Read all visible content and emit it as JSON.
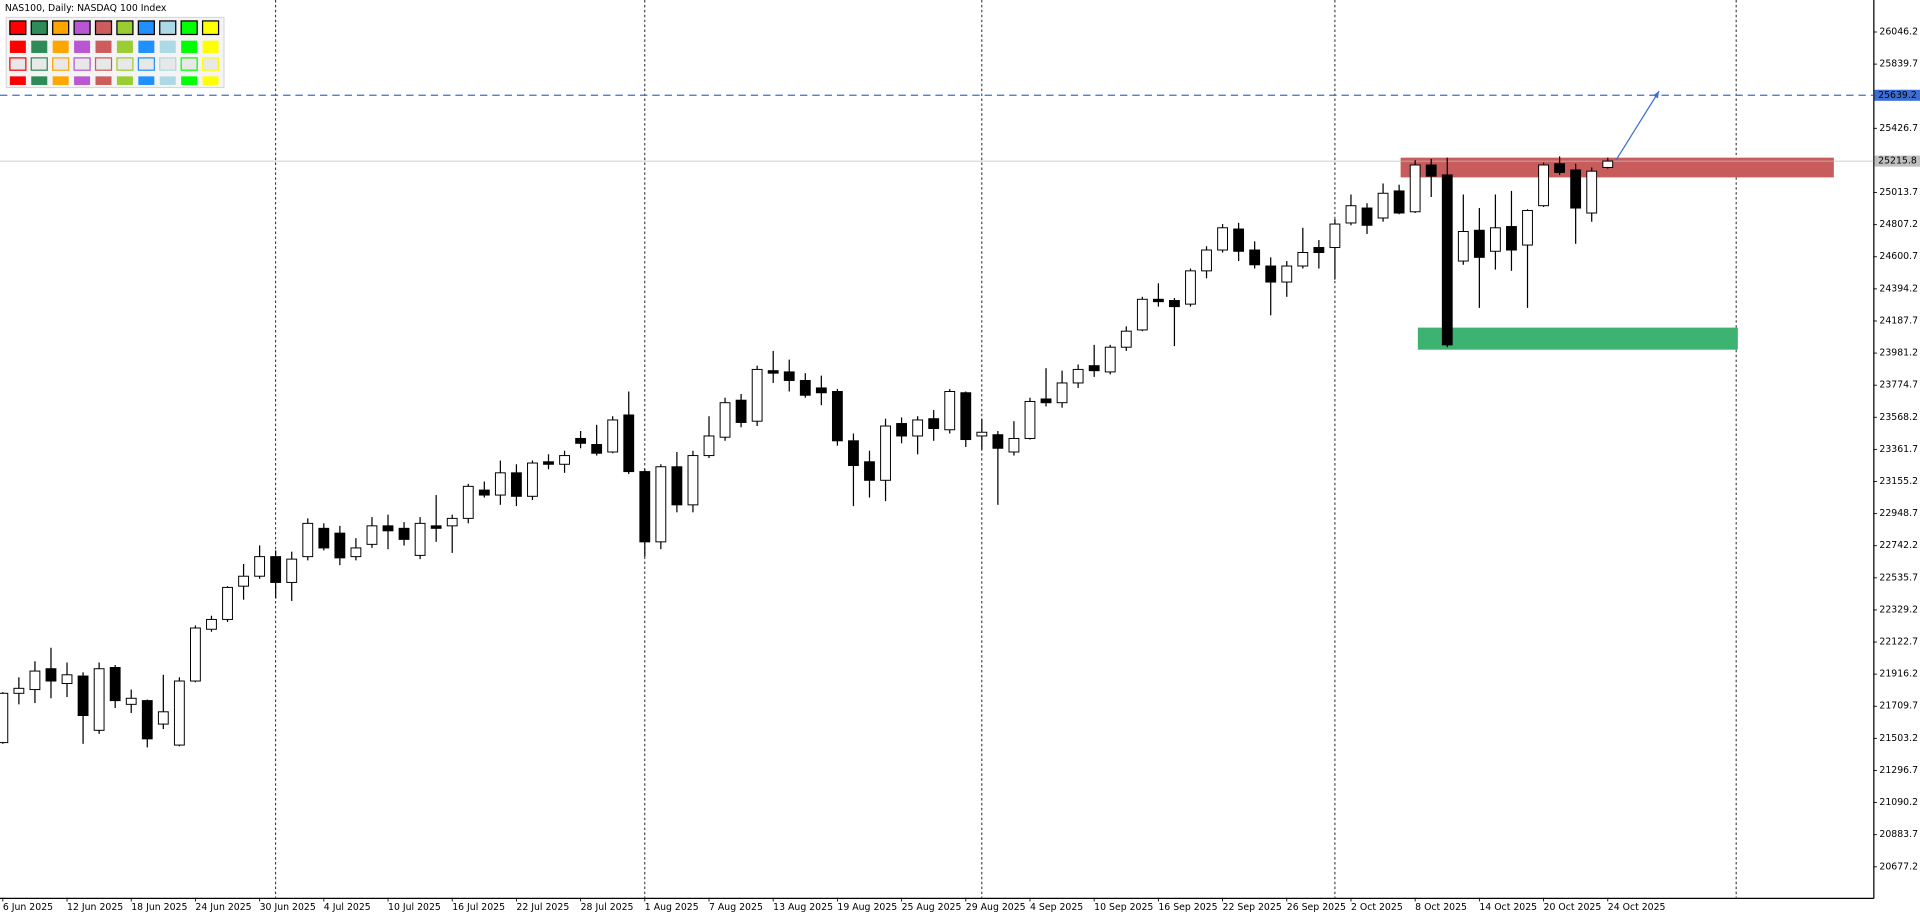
{
  "chart_data": {
    "type": "candlestick",
    "title": "NAS100, Daily:  NASDAQ 100 Index",
    "x": [
      "6 Jun 2025",
      null,
      null,
      null,
      "12 Jun 2025",
      null,
      null,
      null,
      "18 Jun 2025",
      null,
      null,
      null,
      "24 Jun 2025",
      null,
      null,
      null,
      "30 Jun 2025",
      null,
      null,
      null,
      "4 Jul 2025",
      null,
      null,
      null,
      "10 Jul 2025",
      null,
      null,
      null,
      "16 Jul 2025",
      null,
      null,
      null,
      "22 Jul 2025",
      null,
      null,
      null,
      "28 Jul 2025",
      null,
      null,
      null,
      "1 Aug 2025",
      null,
      null,
      null,
      "7 Aug 2025",
      null,
      null,
      null,
      "13 Aug 2025",
      null,
      null,
      null,
      "19 Aug 2025",
      null,
      null,
      null,
      "25 Aug 2025",
      null,
      null,
      null,
      "29 Aug 2025",
      null,
      null,
      null,
      "4 Sep 2025",
      null,
      null,
      null,
      "10 Sep 2025",
      null,
      null,
      null,
      "16 Sep 2025",
      null,
      null,
      null,
      "22 Sep 2025",
      null,
      null,
      null,
      "26 Sep 2025",
      null,
      null,
      null,
      "2 Oct 2025",
      null,
      null,
      null,
      "8 Oct 2025",
      null,
      null,
      null,
      "14 Oct 2025",
      null,
      null,
      null,
      "20 Oct 2025",
      null,
      null,
      null,
      "24 Oct 2025"
    ],
    "open": [
      21476,
      21793,
      21817,
      21951,
      21856,
      21904,
      21555,
      21959,
      21722,
      21746,
      21595,
      21460,
      21872,
      22205,
      22268,
      22482,
      22546,
      22672,
      22506,
      22672,
      22854,
      22823,
      22672,
      22751,
      22870,
      22854,
      22680,
      22870,
      22870,
      22918,
      23100,
      23068,
      23211,
      23060,
      23282,
      23266,
      23432,
      23393,
      23345,
      23583,
      23219,
      22767,
      23250,
      23005,
      23322,
      23440,
      23678,
      23543,
      23868,
      23860,
      23805,
      23757,
      23734,
      23417,
      23282,
      23163,
      23528,
      23448,
      23559,
      23488,
      23726,
      23448,
      23456,
      23345,
      23432,
      23686,
      23662,
      23789,
      23900,
      23860,
      24019,
      24130,
      24327,
      24319,
      24296,
      24510,
      24644,
      24779,
      24644,
      24541,
      24438,
      24541,
      24660,
      24660,
      24818,
      24914,
      24850,
      25024,
      24890,
      25191,
      25127,
      24573,
      24771,
      24636,
      24795,
      24676,
      24929,
      25199,
      25159,
      24882,
      25175
    ],
    "high": [
      21801,
      21896,
      21999,
      22086,
      21991,
      21928,
      21991,
      21975,
      21817,
      21753,
      21912,
      21896,
      22229,
      22292,
      22482,
      22625,
      22744,
      22712,
      22704,
      22918,
      22886,
      22870,
      22791,
      22926,
      22942,
      22894,
      22926,
      23068,
      22942,
      23140,
      23155,
      23290,
      23266,
      23290,
      23330,
      23353,
      23480,
      23520,
      23575,
      23734,
      23234,
      23266,
      23345,
      23353,
      23575,
      23694,
      23718,
      23900,
      23995,
      23939,
      23852,
      23836,
      23750,
      23464,
      23353,
      23559,
      23567,
      23575,
      23615,
      23750,
      23734,
      23559,
      23480,
      23543,
      23694,
      23884,
      23868,
      23908,
      24034,
      24034,
      24153,
      24343,
      24430,
      24335,
      24525,
      24668,
      24811,
      24819,
      24700,
      24597,
      24573,
      24787,
      24708,
      24842,
      25001,
      24945,
      25072,
      25064,
      25222,
      25230,
      25238,
      25001,
      24914,
      25001,
      25024,
      24906,
      25207,
      25246,
      25199,
      25175,
      25238
    ],
    "low": [
      21468,
      21722,
      21730,
      21761,
      21769,
      21468,
      21532,
      21698,
      21666,
      21445,
      21563,
      21452,
      21864,
      22189,
      22252,
      22395,
      22530,
      22403,
      22387,
      22648,
      22712,
      22617,
      22648,
      22728,
      22720,
      22743,
      22656,
      22767,
      22696,
      22886,
      23052,
      23005,
      22997,
      23036,
      23234,
      23211,
      23369,
      23322,
      23337,
      23203,
      22672,
      22720,
      22957,
      22957,
      23306,
      23417,
      23504,
      23512,
      23789,
      23734,
      23694,
      23646,
      23385,
      22997,
      23052,
      23029,
      23401,
      23330,
      23417,
      23464,
      23377,
      23361,
      23005,
      23322,
      23425,
      23638,
      23630,
      23757,
      23828,
      23844,
      23995,
      24122,
      24280,
      24026,
      24280,
      24462,
      24628,
      24573,
      24525,
      24224,
      24343,
      24525,
      24525,
      24454,
      24803,
      24747,
      24826,
      24874,
      24882,
      24985,
      24019,
      24549,
      24272,
      24518,
      24510,
      24272,
      24921,
      25127,
      24684,
      24826,
      25167
    ],
    "close": [
      21793,
      21825,
      21936,
      21872,
      21912,
      21650,
      21951,
      21746,
      21761,
      21500,
      21674,
      21872,
      22213,
      22268,
      22474,
      22546,
      22672,
      22506,
      22656,
      22886,
      22728,
      22664,
      22728,
      22870,
      22838,
      22783,
      22886,
      22854,
      22918,
      23124,
      23068,
      23211,
      23060,
      23274,
      23266,
      23322,
      23401,
      23337,
      23551,
      23219,
      22767,
      23250,
      23005,
      23322,
      23448,
      23662,
      23535,
      23876,
      23852,
      23805,
      23710,
      23726,
      23417,
      23258,
      23163,
      23512,
      23448,
      23551,
      23496,
      23734,
      23425,
      23472,
      23369,
      23432,
      23670,
      23662,
      23789,
      23876,
      23868,
      24019,
      24122,
      24327,
      24312,
      24280,
      24510,
      24644,
      24787,
      24636,
      24549,
      24438,
      24541,
      24628,
      24628,
      24811,
      24929,
      24803,
      25009,
      24882,
      25191,
      25119,
      24034,
      24763,
      24597,
      24787,
      24644,
      24898,
      25191,
      25143,
      24914,
      25151,
      25216
    ],
    "up_color": "#ffffff",
    "down_color": "#000000",
    "ylim": [
      20478,
      26252
    ],
    "yticks": [
      26046.2,
      25839.7,
      25426.7,
      25013.7,
      24807.2,
      24600.7,
      24394.2,
      24187.7,
      23981.2,
      23774.7,
      23568.2,
      23361.7,
      23155.2,
      22948.7,
      22742.2,
      22535.7,
      22329.2,
      22122.7,
      21916.2,
      21709.7,
      21503.2,
      21296.7,
      21090.2,
      20883.7,
      20677.2
    ],
    "price_lines": [
      {
        "value": 25639.2,
        "color": "#3b6fd4",
        "style": "dashed"
      },
      {
        "value": 25215.8,
        "color": "#c0c0c0",
        "style": "solid"
      }
    ],
    "zones": [
      {
        "top": 25238,
        "bottom": 25111,
        "color": "#c85c5c"
      },
      {
        "top": 24145,
        "bottom": 24003,
        "color": "#3cb371"
      }
    ],
    "arrow": {
      "from": 25222,
      "to": 25666,
      "color": "#3b6fd4"
    }
  }
}
